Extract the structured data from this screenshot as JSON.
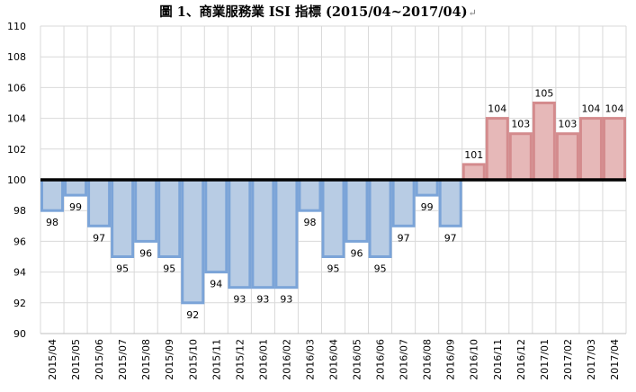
{
  "chart_data": {
    "type": "bar",
    "title": "圖 1、商業服務業 ISI 指標 (2015/04~2017/04)",
    "baseline": 100,
    "ylim": [
      90,
      110
    ],
    "yticks": [
      "90",
      "92",
      "94",
      "96",
      "98",
      "100",
      "102",
      "104",
      "106",
      "108",
      "110"
    ],
    "grid": true,
    "categories": [
      "2015/04",
      "2015/05",
      "2015/06",
      "2015/07",
      "2015/08",
      "2015/09",
      "2015/10",
      "2015/11",
      "2015/12",
      "2016/01",
      "2016/02",
      "2016/03",
      "2016/04",
      "2016/05",
      "2016/06",
      "2016/07",
      "2016/08",
      "2016/09",
      "2016/10",
      "2016/11",
      "2016/12",
      "2017/01",
      "2017/02",
      "2017/03",
      "2017/04"
    ],
    "values": [
      98,
      99,
      97,
      95,
      96,
      95,
      92,
      94,
      93,
      93,
      93,
      98,
      95,
      96,
      95,
      97,
      99,
      97,
      101,
      104,
      103,
      105,
      103,
      104,
      104
    ],
    "colors": {
      "below_fill": "#b8cce4",
      "below_stroke": "#7ba4d8",
      "above_fill": "#e6b8b8",
      "above_stroke": "#d48b8d",
      "baseline": "#000000",
      "grid": "#d9d9d9"
    }
  }
}
